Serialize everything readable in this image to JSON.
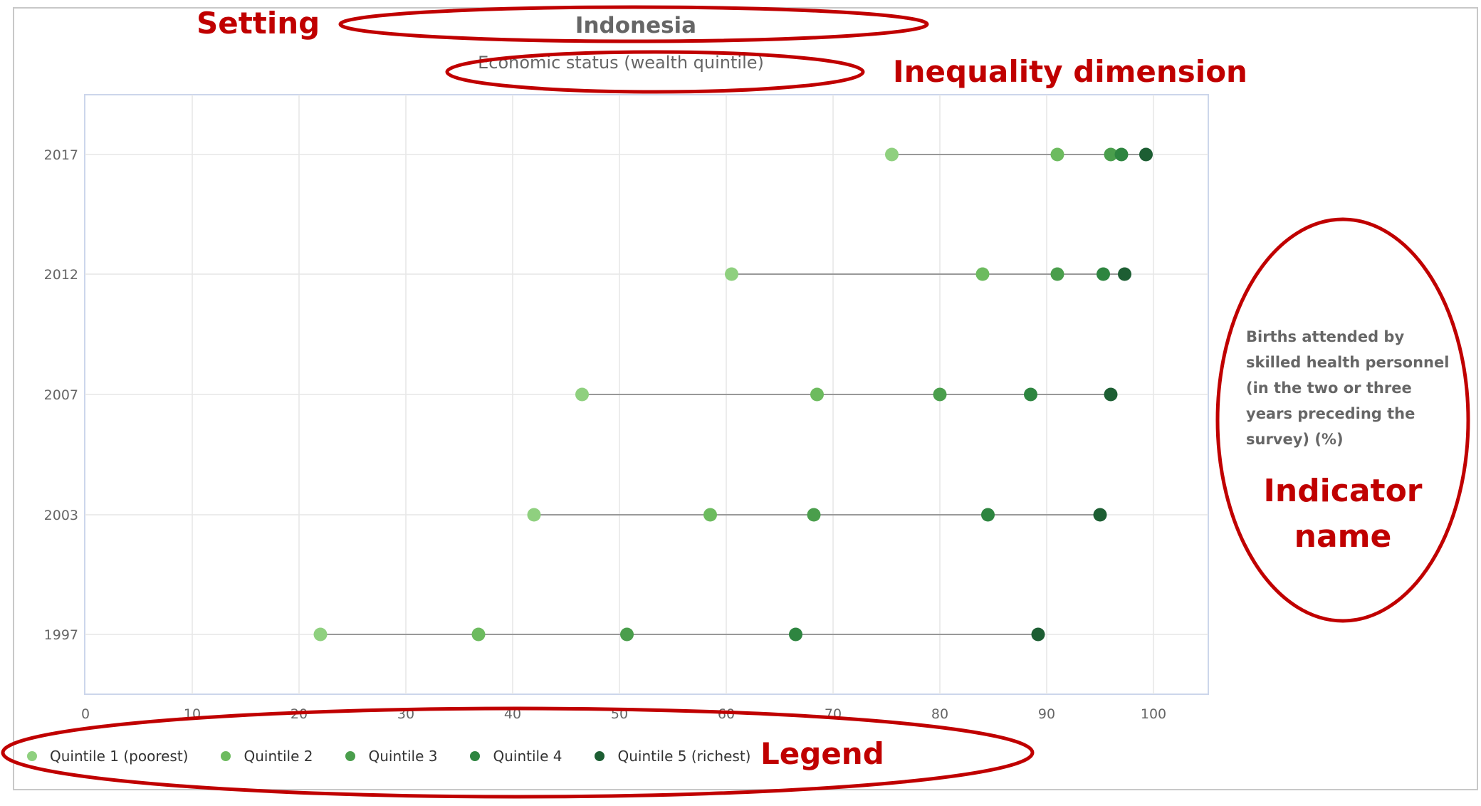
{
  "annotations": {
    "setting": "Setting",
    "inequality_dimension": "Inequality dimension",
    "indicator_line1": "Indicator",
    "indicator_line2": "name",
    "legend": "Legend"
  },
  "chart_data": {
    "type": "scatter",
    "title": "Indonesia",
    "subtitle": "Economic status (wealth quintile)",
    "indicator_label": "Births attended by skilled health personnel (in the two or three years preceding the survey) (%)",
    "xlim": [
      0,
      100
    ],
    "x_ticks": [
      "0",
      "10",
      "20",
      "30",
      "40",
      "50",
      "60",
      "70",
      "80",
      "90",
      "100"
    ],
    "categories": [
      "2017",
      "2012",
      "2007",
      "2003",
      "1997"
    ],
    "grid": true,
    "legend_position": "bottom-left",
    "series": [
      {
        "name": "Quintile 1 (poorest)",
        "color": "#8fd07f",
        "values": [
          75.5,
          60.5,
          46.5,
          42.0,
          22.0
        ]
      },
      {
        "name": "Quintile 2",
        "color": "#6dbb5f",
        "values": [
          91.0,
          84.0,
          68.5,
          58.5,
          36.8
        ]
      },
      {
        "name": "Quintile 3",
        "color": "#4a9e4c",
        "values": [
          96.0,
          91.0,
          80.0,
          68.2,
          50.7
        ]
      },
      {
        "name": "Quintile 4",
        "color": "#2e8540",
        "values": [
          97.0,
          95.3,
          88.5,
          84.5,
          66.5
        ]
      },
      {
        "name": "Quintile 5 (richest)",
        "color": "#1d5e33",
        "values": [
          99.3,
          97.3,
          96.0,
          95.0,
          89.2
        ]
      }
    ],
    "connector_color": "#999999"
  }
}
